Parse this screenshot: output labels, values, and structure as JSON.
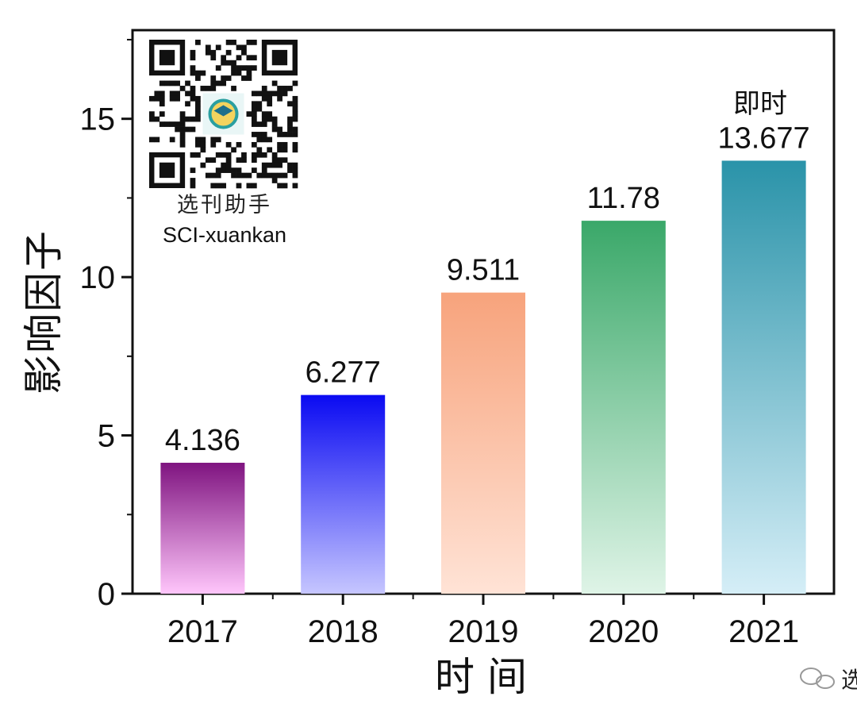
{
  "chart_data": {
    "type": "bar",
    "categories": [
      "2017",
      "2018",
      "2019",
      "2020",
      "2021"
    ],
    "values": [
      4.136,
      6.277,
      9.511,
      11.78,
      13.677
    ],
    "data_labels": [
      "4.136",
      "6.277",
      "9.511",
      "11.78",
      "13.677"
    ],
    "annotation": "即时",
    "title": "",
    "xlabel": "时 间",
    "ylabel": "影响因子",
    "ylim": [
      0,
      17.8
    ],
    "yticks": [
      0,
      5,
      10,
      15
    ],
    "grid": false,
    "bar_colors": [
      {
        "top": "#7f1480",
        "bottom": "#ffc6fb"
      },
      {
        "top": "#0a0af2",
        "bottom": "#c6c6ff"
      },
      {
        "top": "#f7a37c",
        "bottom": "#ffe3d6"
      },
      {
        "top": "#3aa869",
        "bottom": "#dff4e7"
      },
      {
        "top": "#2a93a9",
        "bottom": "#d5eef7"
      }
    ]
  },
  "watermark": {
    "cn_name": "选刊助手",
    "en_name": "SCI-xuankan",
    "icon": "qr-code-icon",
    "corner_icon": "wechat-icon",
    "corner_text": "选"
  }
}
